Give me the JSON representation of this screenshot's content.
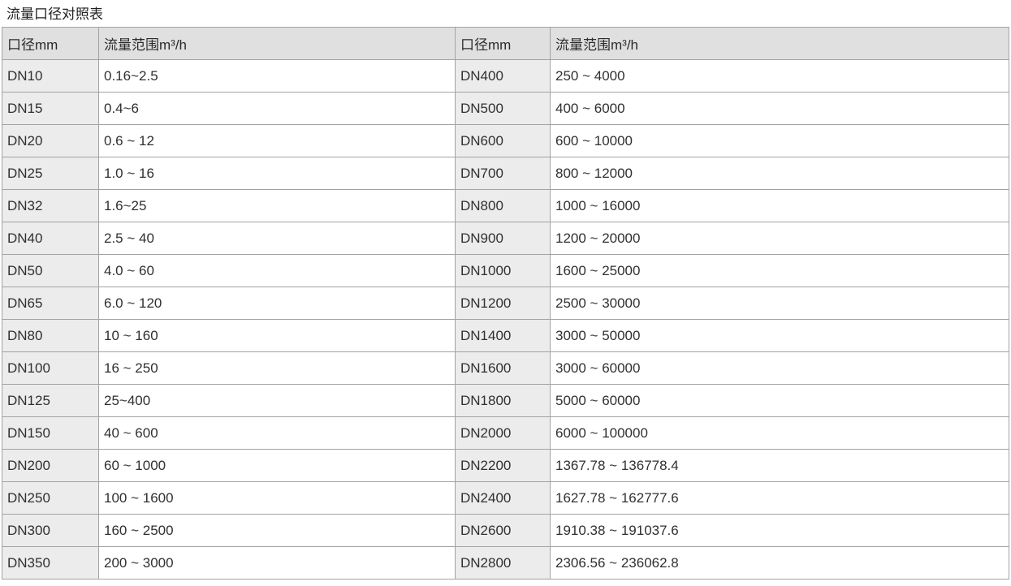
{
  "page": {
    "title": "流量口径对照表"
  },
  "colors": {
    "header_bg": "#e0e0e0",
    "label_bg": "#ececec",
    "border": "#a3a3a3",
    "text": "#303030"
  },
  "table": {
    "headers": [
      "口径mm",
      "流量范围m³/h",
      "口径mm",
      "流量范围m³/h"
    ],
    "rows": [
      {
        "dn_left": "DN10",
        "range_left": "0.16~2.5",
        "dn_right": "DN400",
        "range_right": "250 ~ 4000"
      },
      {
        "dn_left": "DN15",
        "range_left": "0.4~6",
        "dn_right": "DN500",
        "range_right": "400 ~ 6000"
      },
      {
        "dn_left": "DN20",
        "range_left": "0.6 ~ 12",
        "dn_right": "DN600",
        "range_right": "600 ~ 10000"
      },
      {
        "dn_left": "DN25",
        "range_left": "1.0 ~ 16",
        "dn_right": "DN700",
        "range_right": "800 ~ 12000"
      },
      {
        "dn_left": "DN32",
        "range_left": "1.6~25",
        "dn_right": "DN800",
        "range_right": "1000 ~ 16000"
      },
      {
        "dn_left": "DN40",
        "range_left": "2.5 ~ 40",
        "dn_right": "DN900",
        "range_right": "1200 ~ 20000"
      },
      {
        "dn_left": "DN50",
        "range_left": "4.0 ~ 60",
        "dn_right": "DN1000",
        "range_right": "1600 ~ 25000"
      },
      {
        "dn_left": "DN65",
        "range_left": "6.0 ~ 120",
        "dn_right": "DN1200",
        "range_right": "2500 ~ 30000"
      },
      {
        "dn_left": "DN80",
        "range_left": "10 ~ 160",
        "dn_right": "DN1400",
        "range_right": "3000 ~ 50000"
      },
      {
        "dn_left": "DN100",
        "range_left": "16 ~ 250",
        "dn_right": "DN1600",
        "range_right": "3000 ~ 60000"
      },
      {
        "dn_left": "DN125",
        "range_left": "25~400",
        "dn_right": "DN1800",
        "range_right": "5000 ~ 60000"
      },
      {
        "dn_left": "DN150",
        "range_left": "40 ~ 600",
        "dn_right": "DN2000",
        "range_right": "6000 ~ 100000"
      },
      {
        "dn_left": "DN200",
        "range_left": "60 ~ 1000",
        "dn_right": "DN2200",
        "range_right": "1367.78 ~ 136778.4"
      },
      {
        "dn_left": "DN250",
        "range_left": "100 ~ 1600",
        "dn_right": "DN2400",
        "range_right": "1627.78 ~ 162777.6"
      },
      {
        "dn_left": "DN300",
        "range_left": "160 ~ 2500",
        "dn_right": "DN2600",
        "range_right": "1910.38 ~ 191037.6"
      },
      {
        "dn_left": "DN350",
        "range_left": "200 ~ 3000",
        "dn_right": "DN2800",
        "range_right": "2306.56  ~  236062.8"
      }
    ]
  }
}
